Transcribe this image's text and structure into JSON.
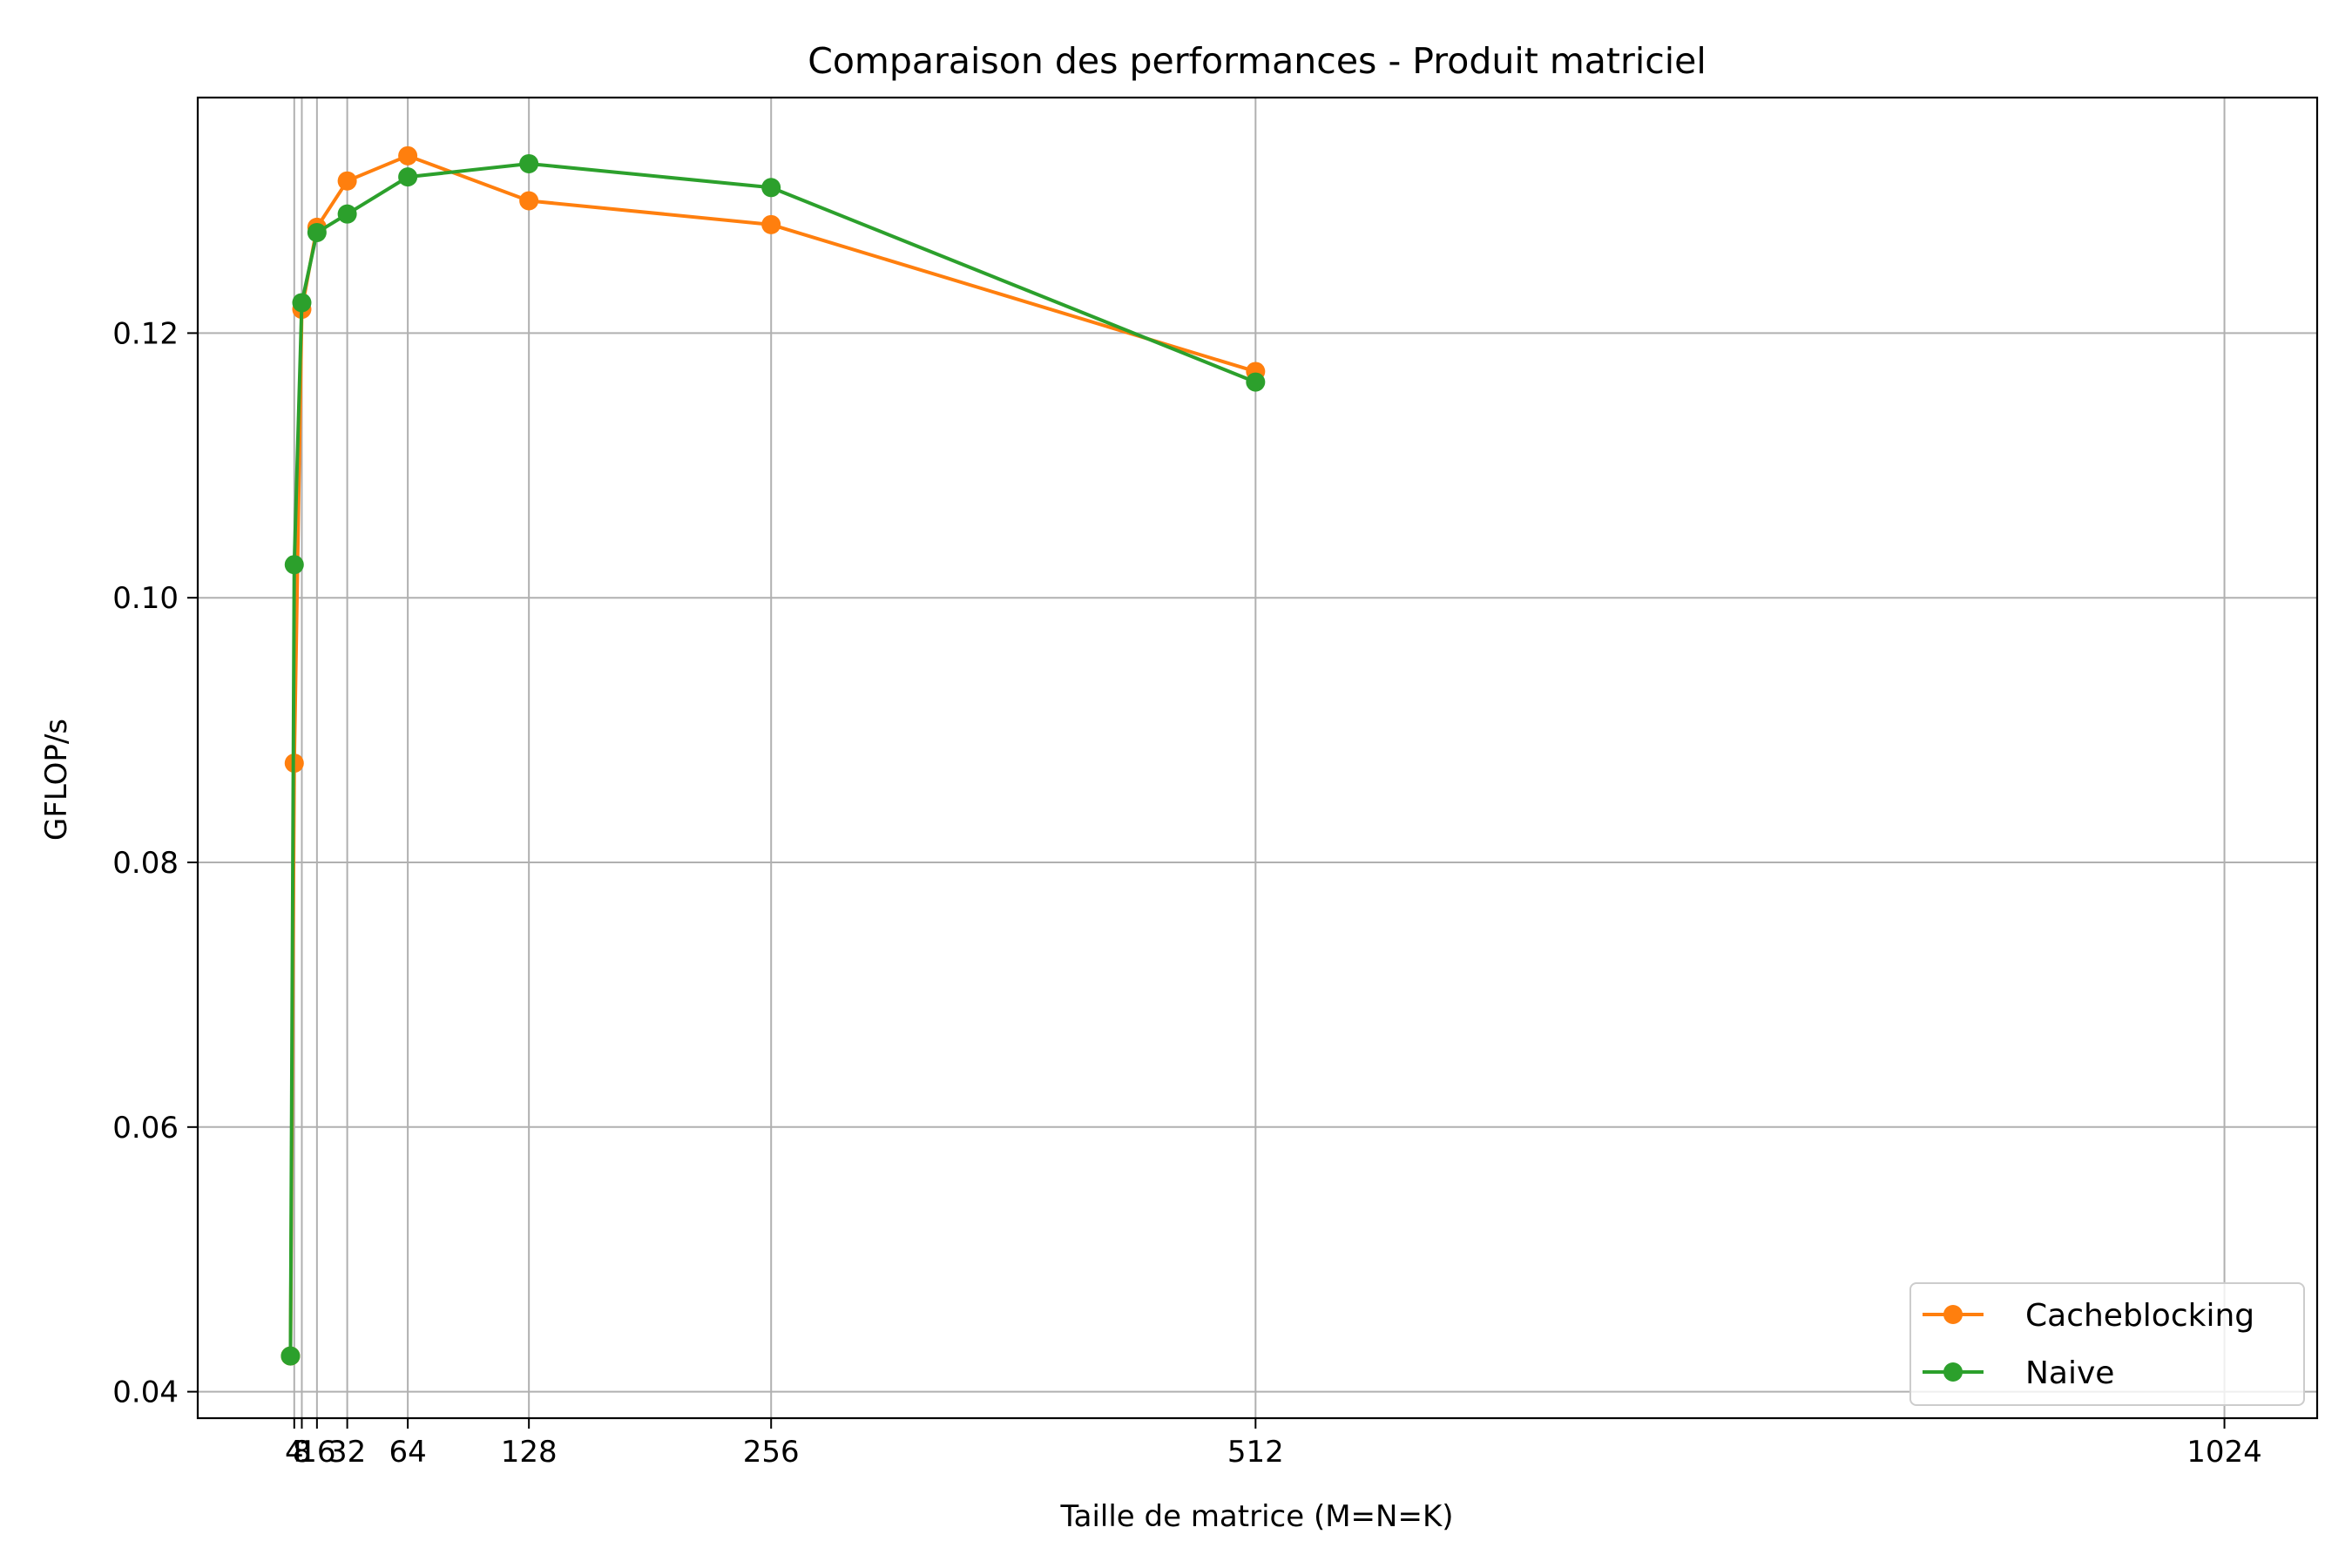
{
  "chart_data": {
    "type": "line",
    "title": "Comparaison des performances - Produit matriciel",
    "xlabel": "Taille de matrice (M=N=K)",
    "ylabel": "GFLOP/s",
    "x": [
      2,
      4,
      8,
      16,
      32,
      64,
      128,
      256,
      512,
      1024
    ],
    "xticks": [
      4,
      8,
      16,
      32,
      64,
      128,
      256,
      512,
      1024
    ],
    "xtick_labels": [
      "4",
      "8",
      "16",
      "32",
      "64",
      "128",
      "256",
      "512",
      "1024"
    ],
    "yticks": [
      0.04,
      0.06,
      0.08,
      0.1,
      0.12
    ],
    "ytick_labels": [
      "0.04",
      "0.06",
      "0.08",
      "0.10",
      "0.12"
    ],
    "xlim": [
      -47,
      1073
    ],
    "ylim": [
      0.038,
      0.1378
    ],
    "grid": true,
    "legend_position": "lower right",
    "series": [
      {
        "name": "Cacheblocking",
        "color": "#ff7f0e",
        "marker": "circle",
        "values": [
          0.0427,
          0.0875,
          0.1218,
          0.128,
          0.1315,
          0.1334,
          0.13,
          0.1282,
          0.1171,
          null
        ]
      },
      {
        "name": "Naive",
        "color": "#2ca02c",
        "marker": "circle",
        "values": [
          0.0427,
          0.1025,
          0.1223,
          0.1276,
          0.129,
          0.1318,
          0.1328,
          0.131,
          0.1163,
          null
        ]
      }
    ]
  }
}
